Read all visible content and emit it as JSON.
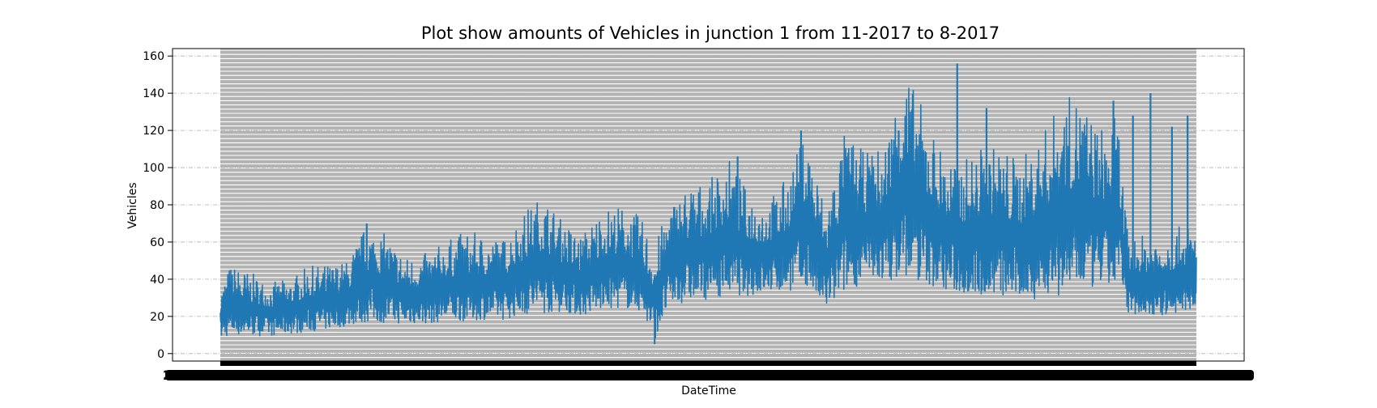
{
  "chart_data": {
    "type": "line",
    "title": "Plot show amounts of Vehicles in junction 1 from 11-2017 to 8-2017",
    "xlabel": "DateTime",
    "ylabel": "Vehicles",
    "ylim": [
      -4,
      164
    ],
    "yticks": [
      0,
      20,
      40,
      60,
      80,
      100,
      120,
      140,
      160
    ],
    "grid": true,
    "x_ticks_overlapping": true,
    "legend": "none",
    "series": [
      {
        "color": "#1f77b4",
        "x": [
          0,
          0.01,
          0.03,
          0.05,
          0.07,
          0.09,
          0.11,
          0.13,
          0.15,
          0.17,
          0.19,
          0.21,
          0.23,
          0.25,
          0.27,
          0.29,
          0.31,
          0.33,
          0.35,
          0.37,
          0.39,
          0.41,
          0.43,
          0.445,
          0.46,
          0.48,
          0.5,
          0.52,
          0.54,
          0.56,
          0.58,
          0.6,
          0.62,
          0.64,
          0.66,
          0.68,
          0.7,
          0.72,
          0.74,
          0.76,
          0.78,
          0.8,
          0.82,
          0.84,
          0.86,
          0.88,
          0.9,
          0.92,
          0.93,
          0.95,
          0.97,
          0.99,
          1.0
        ],
        "lower": [
          6,
          8,
          8,
          8,
          9,
          10,
          11,
          13,
          14,
          14,
          14,
          14,
          15,
          15,
          16,
          16,
          18,
          18,
          20,
          18,
          20,
          22,
          20,
          5,
          22,
          25,
          26,
          28,
          28,
          30,
          30,
          32,
          20,
          28,
          35,
          35,
          35,
          33,
          30,
          28,
          27,
          26,
          25,
          25,
          25,
          28,
          30,
          32,
          20,
          18,
          18,
          20,
          22
        ],
        "upper": [
          35,
          48,
          44,
          38,
          40,
          47,
          48,
          50,
          70,
          64,
          52,
          54,
          60,
          66,
          64,
          62,
          76,
          86,
          72,
          64,
          78,
          80,
          74,
          58,
          81,
          92,
          92,
          106,
          88,
          82,
          95,
          120,
          80,
          120,
          108,
          112,
          156,
          132,
          110,
          104,
          112,
          112,
          105,
          117,
          136,
          140,
          122,
          128,
          62,
          64,
          65,
          70,
          67
        ],
        "spikes": [
          [
            0.15,
            70
          ],
          [
            0.53,
            106
          ],
          [
            0.595,
            120
          ],
          [
            0.695,
            120
          ],
          [
            0.755,
            156
          ],
          [
            0.785,
            132
          ],
          [
            0.915,
            136
          ],
          [
            0.935,
            128
          ],
          [
            0.953,
            140
          ],
          [
            0.975,
            122
          ],
          [
            0.991,
            128
          ]
        ],
        "min_point": [
          0.445,
          5
        ]
      }
    ]
  }
}
